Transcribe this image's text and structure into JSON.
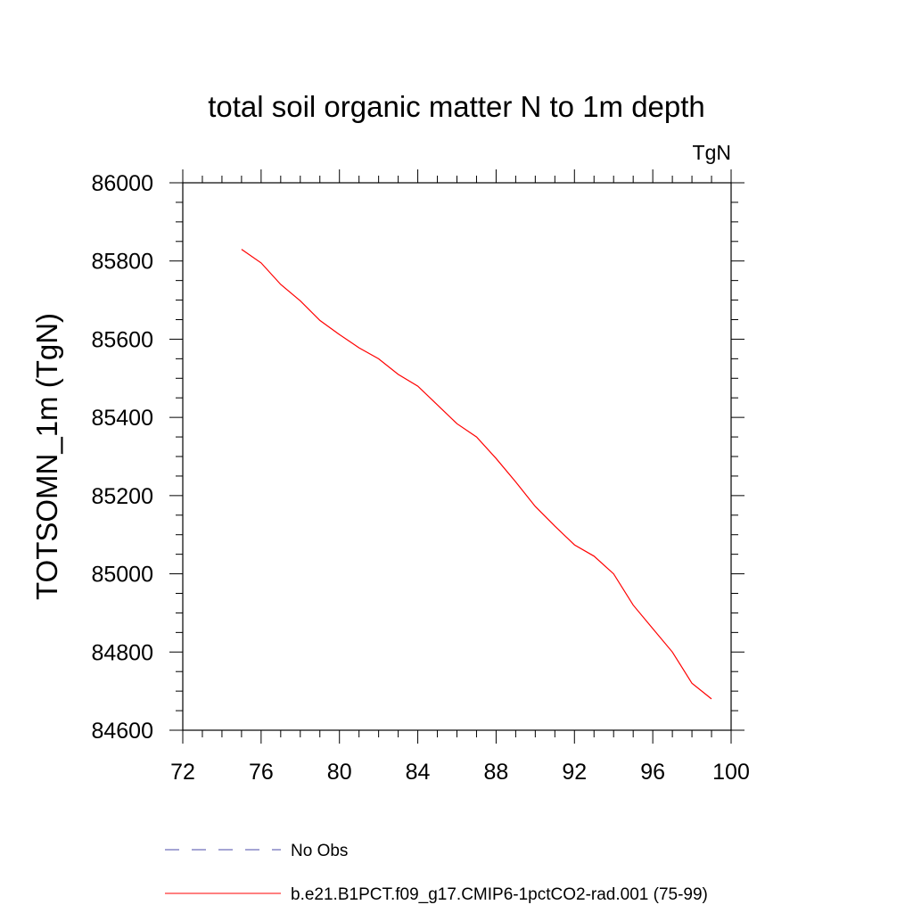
{
  "chart_data": {
    "type": "line",
    "title": "total soil organic matter N to 1m depth",
    "units_label": "TgN",
    "ylabel": "TOTSOMN_1m  (TgN)",
    "xlabel": "",
    "xlim": [
      72,
      100
    ],
    "ylim": [
      84600,
      86000
    ],
    "x_ticks": [
      "72",
      "76",
      "80",
      "84",
      "88",
      "92",
      "96",
      "100"
    ],
    "y_ticks": [
      "84600",
      "84800",
      "85000",
      "85200",
      "85400",
      "85600",
      "85800",
      "86000"
    ],
    "grid": false,
    "legend_position": "bottom",
    "series": [
      {
        "name": "No Obs",
        "color": "#4b4ba8",
        "style": "dashed",
        "x": [],
        "y": []
      },
      {
        "name": "b.e21.B1PCT.f09_g17.CMIP6-1pctCO2-rad.001 (75-99)",
        "color": "#ff0000",
        "style": "solid",
        "x": [
          75,
          76,
          77,
          78,
          79,
          80,
          81,
          82,
          83,
          84,
          85,
          86,
          87,
          88,
          89,
          90,
          91,
          92,
          93,
          94,
          95,
          96,
          97,
          98,
          99
        ],
        "y": [
          85830,
          85795,
          85740,
          85698,
          85648,
          85612,
          85578,
          85550,
          85510,
          85480,
          85432,
          85384,
          85350,
          85295,
          85235,
          85172,
          85122,
          85074,
          85045,
          85000,
          84920,
          84860,
          84800,
          84720,
          84680
        ]
      }
    ]
  }
}
